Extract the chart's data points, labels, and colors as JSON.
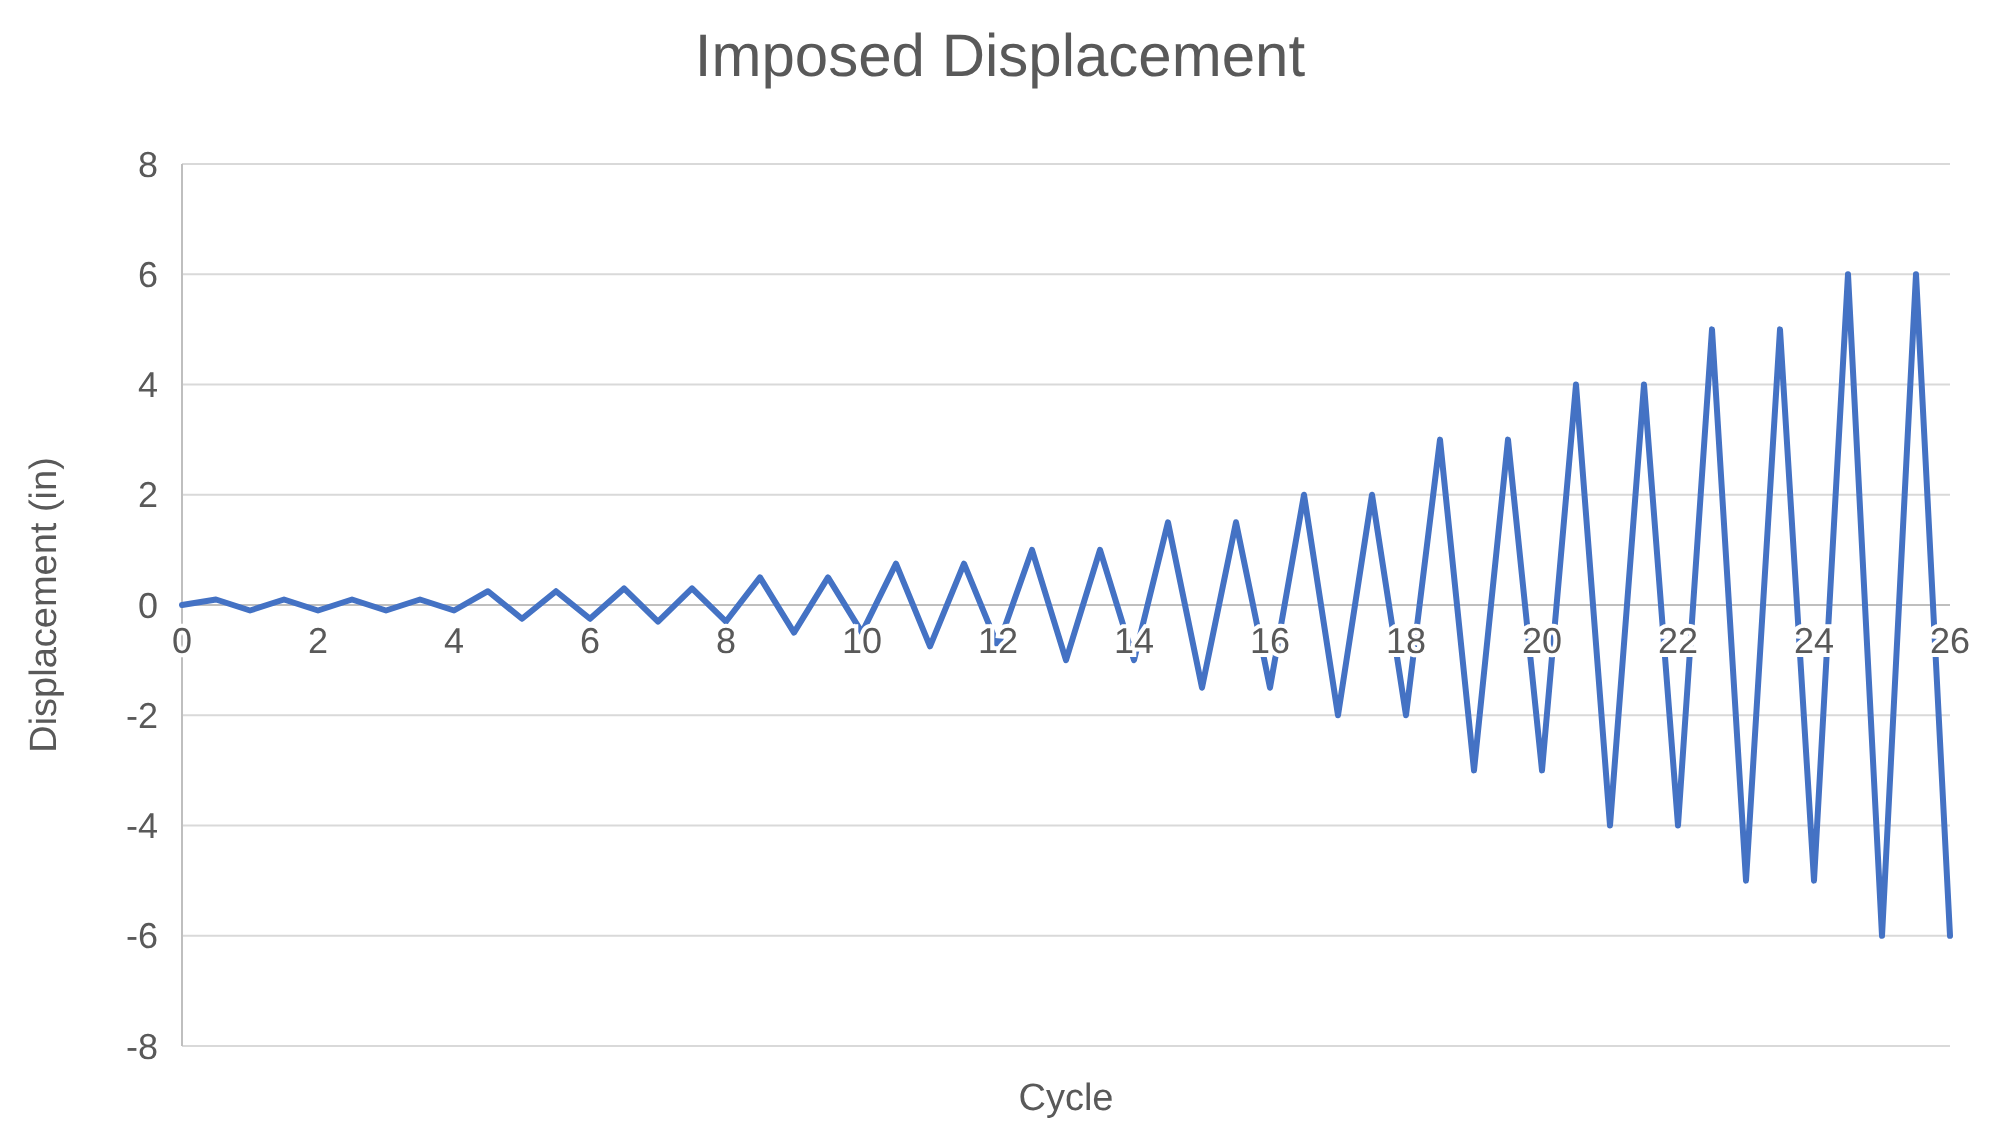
{
  "chart_data": {
    "type": "line",
    "title": "Imposed Displacement",
    "xlabel": "Cycle",
    "ylabel": "Displacement (in)",
    "x": [
      0,
      0.5,
      1,
      1.5,
      2,
      2.5,
      3,
      3.5,
      4,
      4.5,
      5,
      5.5,
      6,
      6.5,
      7,
      7.5,
      8,
      8.5,
      9,
      9.5,
      10,
      10.5,
      11,
      11.5,
      12,
      12.5,
      13,
      13.5,
      14,
      14.5,
      15,
      15.5,
      16,
      16.5,
      17,
      17.5,
      18,
      18.5,
      19,
      19.5,
      20,
      20.5,
      21,
      21.5,
      22,
      22.5,
      23,
      23.5,
      24,
      24.5,
      25,
      25.5,
      26
    ],
    "series": [
      {
        "color": "#4472c4",
        "values": [
          0,
          0.1,
          -0.1,
          0.1,
          -0.1,
          0.1,
          -0.1,
          0.1,
          -0.1,
          0.25,
          -0.25,
          0.25,
          -0.25,
          0.3,
          -0.3,
          0.3,
          -0.3,
          0.5,
          -0.5,
          0.5,
          -0.5,
          0.75,
          -0.75,
          0.75,
          -0.75,
          1,
          -1,
          1,
          -1,
          1.5,
          -1.5,
          1.5,
          -1.5,
          2,
          -2,
          2,
          -2,
          3,
          -3,
          3,
          -3,
          4,
          -4,
          4,
          -4,
          5,
          -5,
          5,
          -5,
          6,
          -6,
          6,
          -6
        ]
      }
    ],
    "xlim": [
      0,
      26
    ],
    "xticks": [
      0,
      2,
      4,
      6,
      8,
      10,
      12,
      14,
      16,
      18,
      20,
      22,
      24,
      26
    ],
    "ylim": [
      -8,
      8
    ],
    "yticks": [
      -8,
      -6,
      -4,
      -2,
      0,
      2,
      4,
      6,
      8
    ],
    "grid": "y",
    "marker": "none",
    "line_style": "solid"
  }
}
